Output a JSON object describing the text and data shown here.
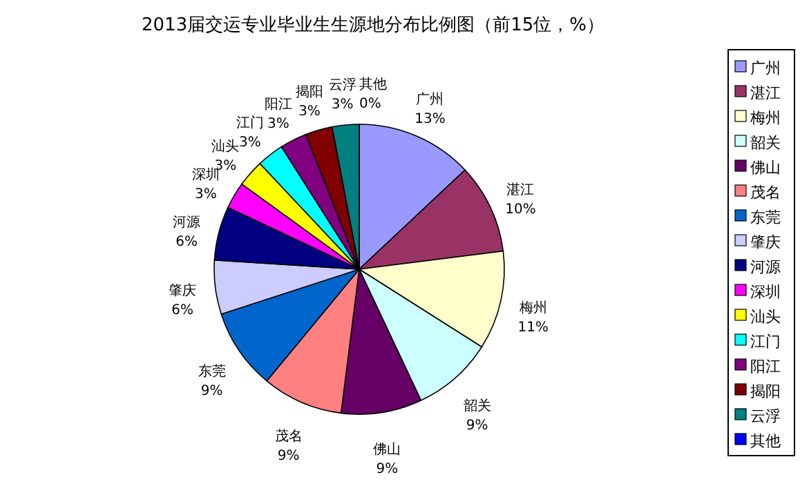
{
  "chart_data": {
    "type": "pie",
    "title": "2013届交运专业毕业生生源地分布比例图（前15位，%）",
    "categories": [
      "广州",
      "湛江",
      "梅州",
      "韶关",
      "佛山",
      "茂名",
      "东莞",
      "肇庆",
      "河源",
      "深圳",
      "汕头",
      "江门",
      "阳江",
      "揭阳",
      "云浮",
      "其他"
    ],
    "values": [
      13,
      10,
      11,
      9,
      9,
      9,
      9,
      6,
      6,
      3,
      3,
      3,
      3,
      3,
      3,
      0
    ],
    "value_labels": [
      "13%",
      "10%",
      "11%",
      "9%",
      "9%",
      "9%",
      "9%",
      "6%",
      "6%",
      "3%",
      "3%",
      "3%",
      "3%",
      "3%",
      "3%",
      "0%"
    ],
    "colors": [
      "#9999ff",
      "#993366",
      "#ffffcc",
      "#ccffff",
      "#660066",
      "#ff8080",
      "#0066cc",
      "#ccccff",
      "#000080",
      "#ff00ff",
      "#ffff00",
      "#00ffff",
      "#800080",
      "#800000",
      "#008080",
      "#0000ff"
    ],
    "legend": "right"
  }
}
